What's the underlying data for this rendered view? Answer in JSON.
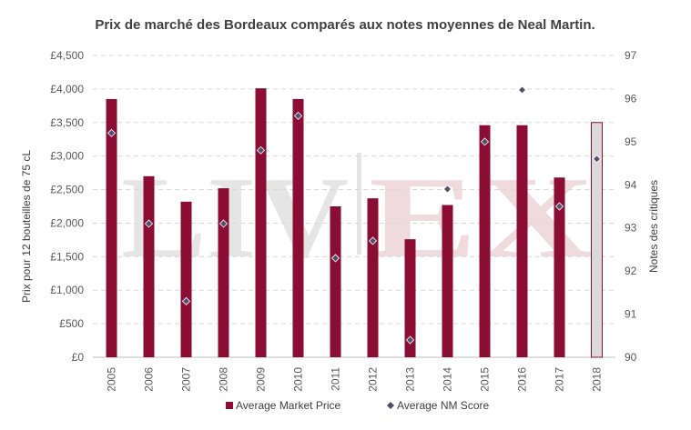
{
  "chart_data": {
    "type": "bar",
    "title": "Prix de marché des Bordeaux comparés aux notes moyennes de Neal Martin.",
    "ylabel": "Prix pour 12 bouteilles de 75 cL",
    "y2label": "Notes des critiques",
    "categories": [
      "2005",
      "2006",
      "2007",
      "2008",
      "2009",
      "2010",
      "2011",
      "2012",
      "2013",
      "2014",
      "2015",
      "2016",
      "2017",
      "2018"
    ],
    "ylim": [
      0,
      4500
    ],
    "yticks": [
      "£0",
      "£500",
      "£1,000",
      "£1,500",
      "£2,000",
      "£2,500",
      "£3,000",
      "£3,500",
      "£4,000",
      "£4,500"
    ],
    "y2lim": [
      90,
      97
    ],
    "y2ticks": [
      "90",
      "91",
      "92",
      "93",
      "94",
      "95",
      "96",
      "97"
    ],
    "series": [
      {
        "name": "Average Market Price",
        "type": "bar",
        "color": "#8b0d35",
        "highlight_color": "#d9d9d9",
        "values": [
          3850,
          2700,
          2320,
          2520,
          4010,
          3850,
          2250,
          2370,
          1760,
          2270,
          3460,
          3460,
          2680,
          3500
        ]
      },
      {
        "name": "Average NM Score",
        "type": "scatter",
        "axis": "secondary",
        "marker": "diamond",
        "color": "#4f4f6e",
        "values": [
          95.2,
          93.1,
          91.3,
          93.1,
          94.8,
          95.6,
          92.3,
          92.7,
          90.4,
          93.9,
          95.0,
          96.2,
          93.5,
          94.6
        ]
      }
    ],
    "watermark": "LIV-EX",
    "grid": true,
    "legend": "bottom"
  }
}
